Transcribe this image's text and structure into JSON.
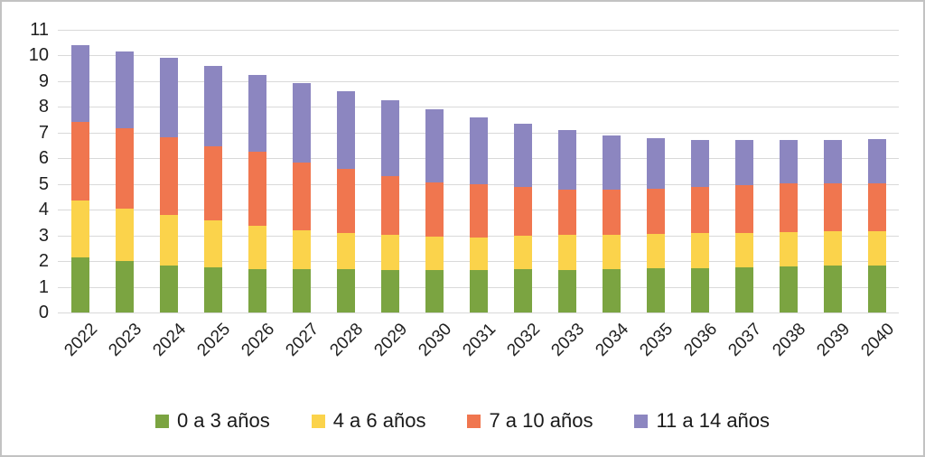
{
  "chart_data": {
    "type": "bar",
    "stacked": true,
    "title": "",
    "xlabel": "",
    "ylabel": "",
    "ylim": [
      0,
      11
    ],
    "ytick_step": 1,
    "y_ticks": [
      "0",
      "1",
      "2",
      "3",
      "4",
      "5",
      "6",
      "7",
      "8",
      "9",
      "10",
      "11"
    ],
    "grid": true,
    "legend_position": "bottom",
    "categories": [
      "2022",
      "2023",
      "2024",
      "2025",
      "2026",
      "2027",
      "2028",
      "2029",
      "2030",
      "2031",
      "2032",
      "2033",
      "2034",
      "2035",
      "2036",
      "2037",
      "2038",
      "2039",
      "2040"
    ],
    "series": [
      {
        "name": "0 a 3 años",
        "color": "#7BA441",
        "values": [
          2.15,
          2.0,
          1.83,
          1.75,
          1.69,
          1.69,
          1.68,
          1.66,
          1.65,
          1.64,
          1.68,
          1.66,
          1.69,
          1.72,
          1.74,
          1.75,
          1.8,
          1.82,
          1.82
        ]
      },
      {
        "name": "4 a 6 años",
        "color": "#FBD34B",
        "values": [
          2.2,
          2.05,
          1.98,
          1.82,
          1.68,
          1.5,
          1.42,
          1.37,
          1.31,
          1.29,
          1.32,
          1.37,
          1.35,
          1.35,
          1.35,
          1.36,
          1.34,
          1.33,
          1.35
        ]
      },
      {
        "name": "7 a 10 años",
        "color": "#F0764F",
        "values": [
          3.05,
          3.13,
          3.0,
          2.91,
          2.87,
          2.64,
          2.5,
          2.29,
          2.1,
          2.06,
          1.87,
          1.76,
          1.73,
          1.76,
          1.8,
          1.85,
          1.87,
          1.86,
          1.86
        ]
      },
      {
        "name": "11 a 14 años",
        "color": "#8C86C0",
        "values": [
          3.0,
          2.97,
          3.09,
          3.1,
          3.0,
          3.1,
          3.0,
          2.94,
          2.85,
          2.61,
          2.46,
          2.3,
          2.12,
          1.97,
          1.84,
          1.75,
          1.7,
          1.71,
          1.73
        ]
      }
    ],
    "colors": {
      "gridline": "#d9d9d9",
      "tick_text": "#1f1f1f",
      "frame_border": "#c2c2c2",
      "background": "#ffffff"
    }
  }
}
